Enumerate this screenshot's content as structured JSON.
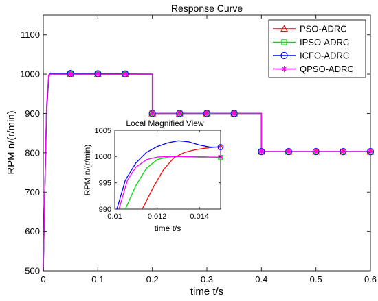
{
  "chart_data": [
    {
      "type": "line",
      "title": "Response Curve",
      "xlabel": "time t/s",
      "ylabel": "RPM n/(r/min)",
      "xlim": [
        0,
        0.6
      ],
      "ylim": [
        500,
        1150
      ],
      "xticks": [
        "0",
        "0.1",
        "0.2",
        "0.3",
        "0.4",
        "0.5",
        "0.6"
      ],
      "yticks": [
        "500",
        "600",
        "700",
        "800",
        "900",
        "1000",
        "1100"
      ],
      "grid": false,
      "legend_position": "top-right",
      "marker_x": [
        0.05,
        0.1,
        0.15,
        0.2,
        0.25,
        0.3,
        0.35,
        0.4,
        0.45,
        0.5,
        0.55,
        0.6
      ],
      "series": [
        {
          "name": "PSO-ADRC",
          "color": "#ff0000",
          "marker": "triangle",
          "x": [
            0,
            0.002,
            0.006,
            0.01,
            0.012,
            0.015,
            0.2,
            0.2,
            0.203,
            0.4,
            0.4,
            0.403,
            0.6
          ],
          "y": [
            500,
            650,
            900,
            990,
            1000,
            1000,
            1000,
            900,
            900,
            900,
            803,
            803,
            803
          ]
        },
        {
          "name": "IPSO-ADRC",
          "color": "#00dd00",
          "marker": "square",
          "x": [
            0,
            0.002,
            0.006,
            0.01,
            0.012,
            0.015,
            0.2,
            0.2,
            0.203,
            0.4,
            0.4,
            0.403,
            0.6
          ],
          "y": [
            500,
            650,
            905,
            995,
            1000,
            1000,
            1000,
            900,
            900,
            900,
            803,
            803,
            803
          ]
        },
        {
          "name": "ICFO-ADRC",
          "color": "#0000ff",
          "marker": "circle",
          "x": [
            0,
            0.002,
            0.006,
            0.01,
            0.013,
            0.015,
            0.2,
            0.2,
            0.203,
            0.4,
            0.4,
            0.403,
            0.6
          ],
          "y": [
            500,
            660,
            910,
            995,
            1003,
            1002,
            1000,
            900,
            900,
            900,
            803,
            803,
            803
          ]
        },
        {
          "name": "QPSO-ADRC",
          "color": "#ff00ff",
          "marker": "asterisk",
          "x": [
            0,
            0.002,
            0.006,
            0.01,
            0.012,
            0.015,
            0.2,
            0.2,
            0.203,
            0.4,
            0.4,
            0.403,
            0.6
          ],
          "y": [
            500,
            660,
            920,
            998,
            1000,
            1000,
            1000,
            900,
            900,
            900,
            803,
            803,
            803
          ]
        }
      ]
    },
    {
      "type": "line",
      "title": "Local Magnified View",
      "xlabel": "time t/s",
      "ylabel": "RPM n/(r/min)",
      "xlim": [
        0.01,
        0.015
      ],
      "ylim": [
        990,
        1005
      ],
      "xticks": [
        "0.01",
        "0.012",
        "0.014"
      ],
      "yticks": [
        "990",
        "995",
        "1000",
        "1005"
      ],
      "grid": false,
      "series": [
        {
          "name": "PSO-ADRC",
          "color": "#ff0000",
          "marker": "triangle",
          "x": [
            0.0113,
            0.0118,
            0.0123,
            0.0128,
            0.0133,
            0.0138,
            0.0143,
            0.0148,
            0.015
          ],
          "y": [
            990,
            994,
            997.5,
            999.8,
            1000.8,
            1001.3,
            1001.6,
            1001.8,
            1001.8
          ]
        },
        {
          "name": "IPSO-ADRC",
          "color": "#00dd00",
          "marker": "square",
          "x": [
            0.0105,
            0.011,
            0.0115,
            0.012,
            0.0125,
            0.013,
            0.014,
            0.015
          ],
          "y": [
            990,
            994.5,
            997.8,
            999.4,
            999.9,
            1000.1,
            1000,
            999.8
          ]
        },
        {
          "name": "ICFO-ADRC",
          "color": "#0000ff",
          "marker": "circle",
          "x": [
            0.0101,
            0.0105,
            0.011,
            0.0115,
            0.012,
            0.0125,
            0.013,
            0.0135,
            0.014,
            0.0145,
            0.015
          ],
          "y": [
            990,
            995.5,
            998.8,
            1000.8,
            1001.9,
            1002.6,
            1003,
            1002.8,
            1002.2,
            1001.8,
            1001.8
          ]
        },
        {
          "name": "QPSO-ADRC",
          "color": "#ff00ff",
          "marker": "asterisk",
          "x": [
            0.0102,
            0.0106,
            0.011,
            0.0115,
            0.012,
            0.0125,
            0.013,
            0.014,
            0.015
          ],
          "y": [
            990,
            995.5,
            998,
            999.4,
            999.9,
            1000,
            1000,
            999.9,
            999.9
          ]
        }
      ]
    }
  ]
}
